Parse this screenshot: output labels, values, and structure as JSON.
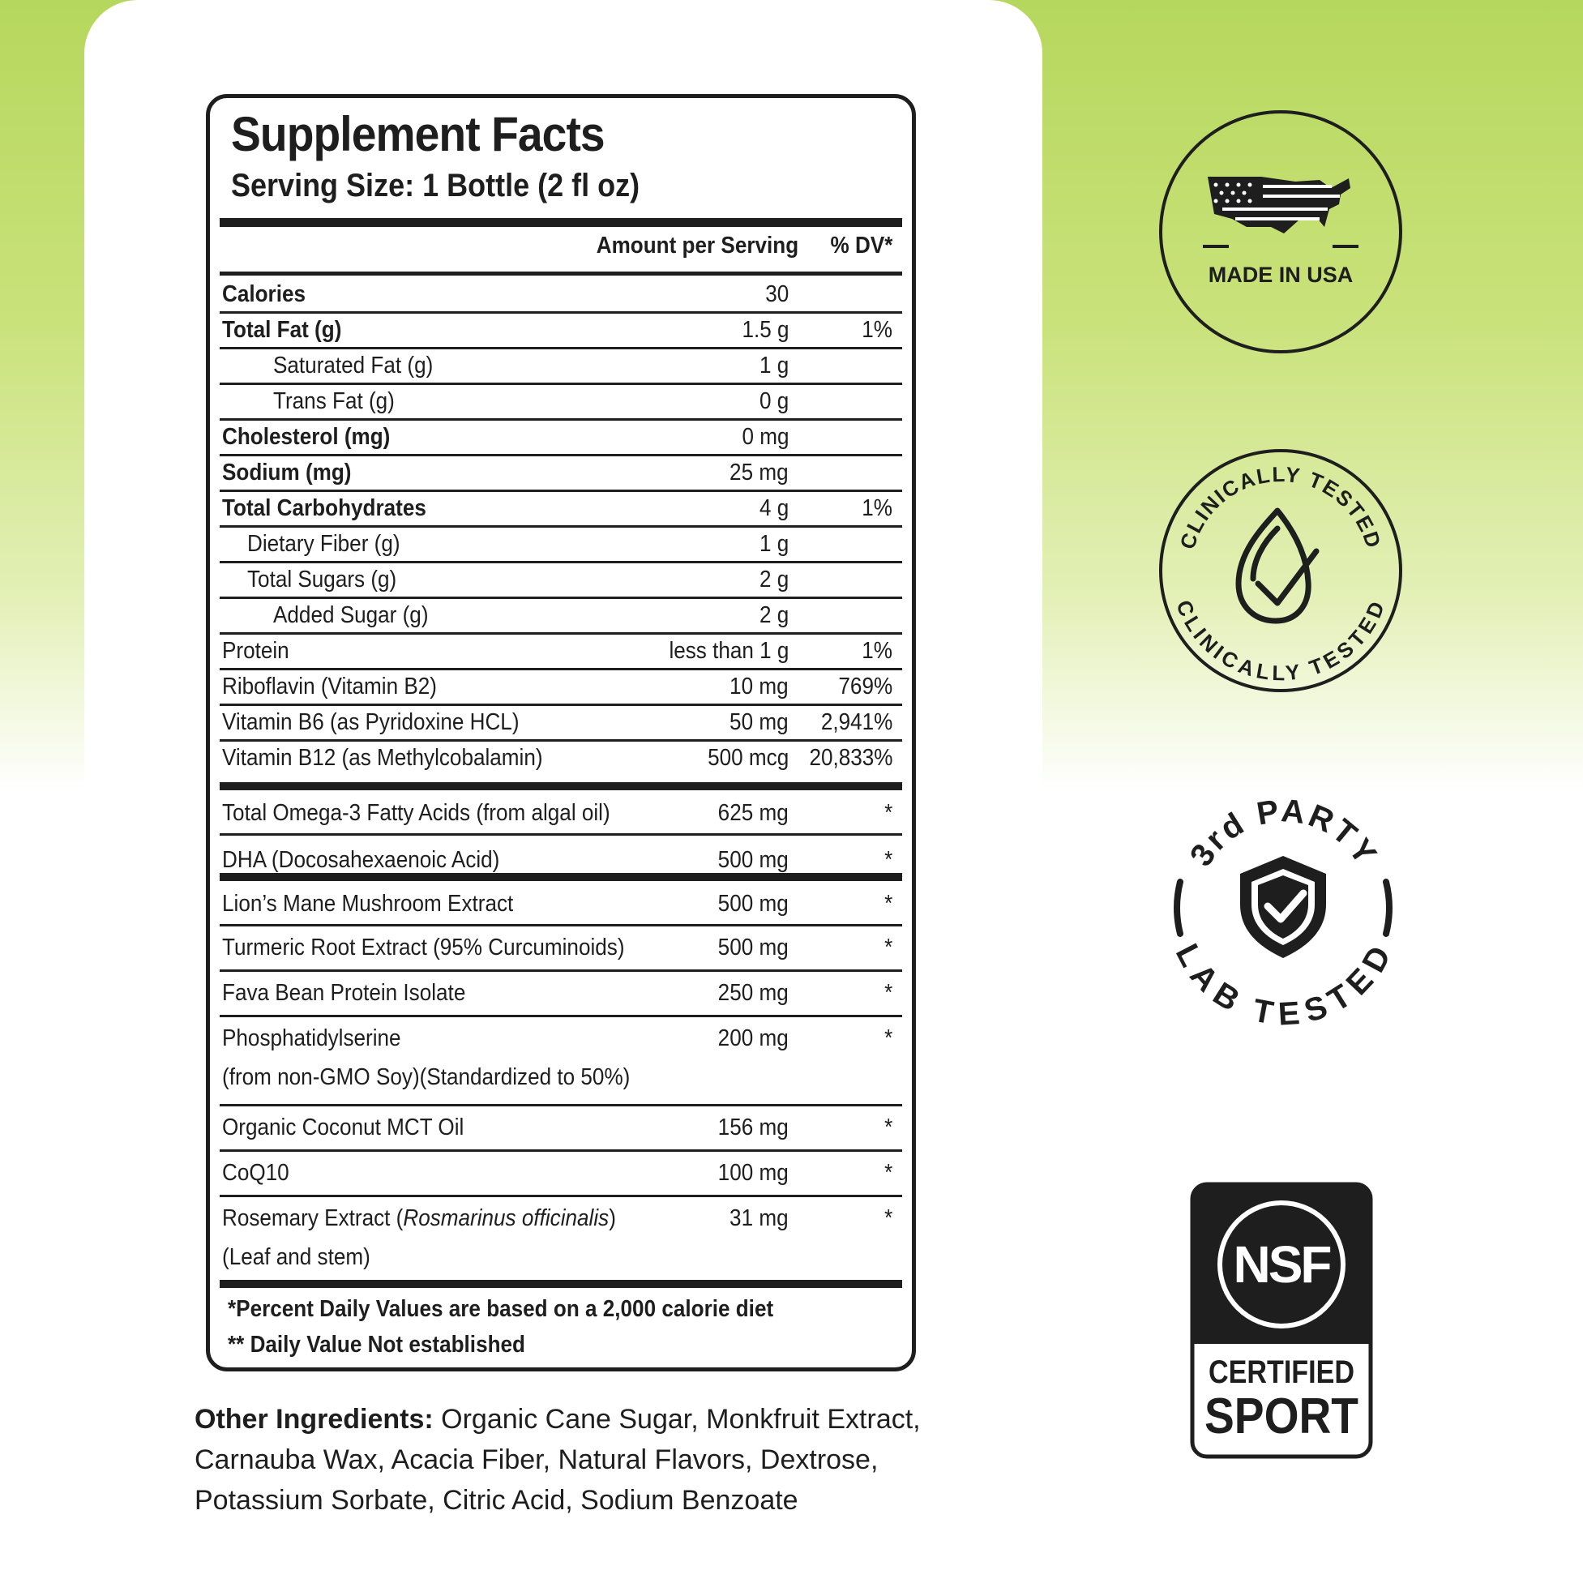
{
  "facts": {
    "title": "Supplement Facts",
    "serving_size": "Serving Size: 1 Bottle (2 fl oz)",
    "col_amount": "Amount per Serving",
    "col_dv": "% DV*",
    "rows": [
      {
        "name": "Calories",
        "amount": "30",
        "dv": ""
      },
      {
        "name": "Total Fat (g)",
        "amount": "1.5 g",
        "dv": "1%"
      },
      {
        "name": "Saturated Fat (g)",
        "amount": "1 g",
        "dv": ""
      },
      {
        "name": "Trans Fat (g)",
        "amount": "0 g",
        "dv": ""
      },
      {
        "name": "Cholesterol (mg)",
        "amount": "0 mg",
        "dv": ""
      },
      {
        "name": "Sodium (mg)",
        "amount": "25 mg",
        "dv": ""
      },
      {
        "name": "Total Carbohydrates",
        "amount": "4 g",
        "dv": "1%"
      },
      {
        "name": "Dietary Fiber (g)",
        "amount": "1 g",
        "dv": ""
      },
      {
        "name": "Total Sugars (g)",
        "amount": "2 g",
        "dv": ""
      },
      {
        "name": "Added Sugar (g)",
        "amount": "2 g",
        "dv": ""
      },
      {
        "name": "Protein",
        "amount": "less than 1 g",
        "dv": "1%"
      },
      {
        "name": "Riboflavin (Vitamin B2)",
        "amount": "10 mg",
        "dv": "769%"
      },
      {
        "name": "Vitamin B6 (as Pyridoxine HCL)",
        "amount": "50 mg",
        "dv": "2,941%"
      },
      {
        "name": "Vitamin B12 (as Methylcobalamin)",
        "amount": "500 mcg",
        "dv": "20,833%"
      }
    ],
    "omega_rows": [
      {
        "name": "Total Omega-3 Fatty Acids (from algal oil)",
        "amount": "625 mg",
        "dv": "*"
      },
      {
        "name": "DHA (Docosahexaenoic Acid)",
        "amount": "500 mg",
        "dv": "*"
      }
    ],
    "blend_rows": [
      {
        "name": "Lion’s Mane Mushroom Extract",
        "amount": "500 mg",
        "dv": "*"
      },
      {
        "name": "Turmeric Root Extract (95% Curcuminoids)",
        "amount": "500 mg",
        "dv": "*"
      },
      {
        "name": "Fava Bean Protein Isolate",
        "amount": "250 mg",
        "dv": "*"
      },
      {
        "name": "Phosphatidylserine",
        "name2": "(from non-GMO Soy)(Standardized to 50%)",
        "amount": "200 mg",
        "dv": "*"
      },
      {
        "name": "Organic Coconut MCT Oil",
        "amount": "156 mg",
        "dv": "*"
      },
      {
        "name": "CoQ10",
        "amount": "100 mg",
        "dv": "*"
      },
      {
        "name_prefix": "Rosemary Extract (",
        "name_italic": "Rosmarinus officinalis",
        "name_suffix": ")",
        "name2": "(Leaf and stem)",
        "amount": "31 mg",
        "dv": "*"
      }
    ],
    "footnote1": "*Percent Daily Values are based on a 2,000 calorie diet",
    "footnote2": "** Daily Value Not established"
  },
  "other_ingredients": {
    "label": "Other Ingredients:",
    "line1": " Organic Cane Sugar, Monkfruit Extract,",
    "line2": "Carnauba Wax, Acacia Fiber, Natural Flavors, Dextrose,",
    "line3": "Potassium Sorbate, Citric Acid, Sodium Benzoate"
  },
  "badges": {
    "made_in_usa": {
      "text": "MADE IN USA",
      "icon": "usa-flag-map-icon"
    },
    "clinically_tested": {
      "text_top": "CLINICALLY TESTED",
      "text_bottom": "CLINICALLY TESTED",
      "icon": "drop-check-icon"
    },
    "lab_tested": {
      "text_top": "3rd PARTY",
      "text_bottom": "LAB TESTED",
      "icon": "shield-check-icon"
    },
    "nsf": {
      "logo": "NSF",
      "line1": "CERTIFIED",
      "line2": "SPORT"
    }
  },
  "colors": {
    "background_green": "#b6d75d",
    "ink": "#1e1e1e"
  }
}
